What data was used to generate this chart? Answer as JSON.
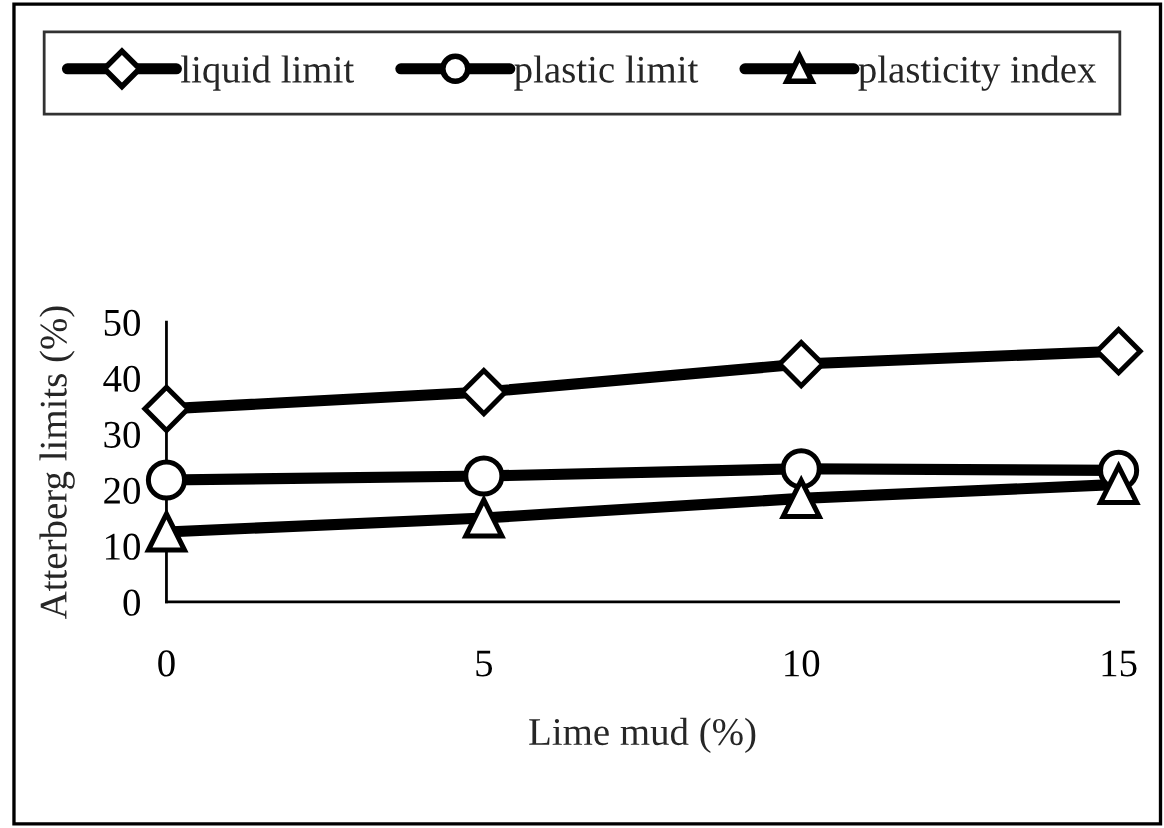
{
  "chart_data": {
    "type": "line",
    "xlabel": "Lime mud (%)",
    "ylabel": "Atterberg limits (%)",
    "x": [
      0,
      5,
      10,
      15
    ],
    "series": [
      {
        "name": "liquid limit",
        "color": "#000000",
        "marker": "diamond",
        "values": [
          34.5,
          37.5,
          42.5,
          44.8
        ]
      },
      {
        "name": "plastic limit",
        "color": "#000000",
        "marker": "circle",
        "values": [
          21.8,
          22.5,
          23.8,
          23.5
        ]
      },
      {
        "name": "plasticity index",
        "color": "#000000",
        "marker": "triangle",
        "values": [
          12.5,
          15,
          18.5,
          21
        ]
      }
    ],
    "xlim": [
      0,
      15
    ],
    "xticks": [
      0,
      5,
      10,
      15
    ],
    "ylim": [
      0,
      50
    ],
    "yticks": [
      0,
      10,
      20,
      30,
      40,
      50
    ],
    "grid": false,
    "legend": "top",
    "line_style": "solid"
  }
}
